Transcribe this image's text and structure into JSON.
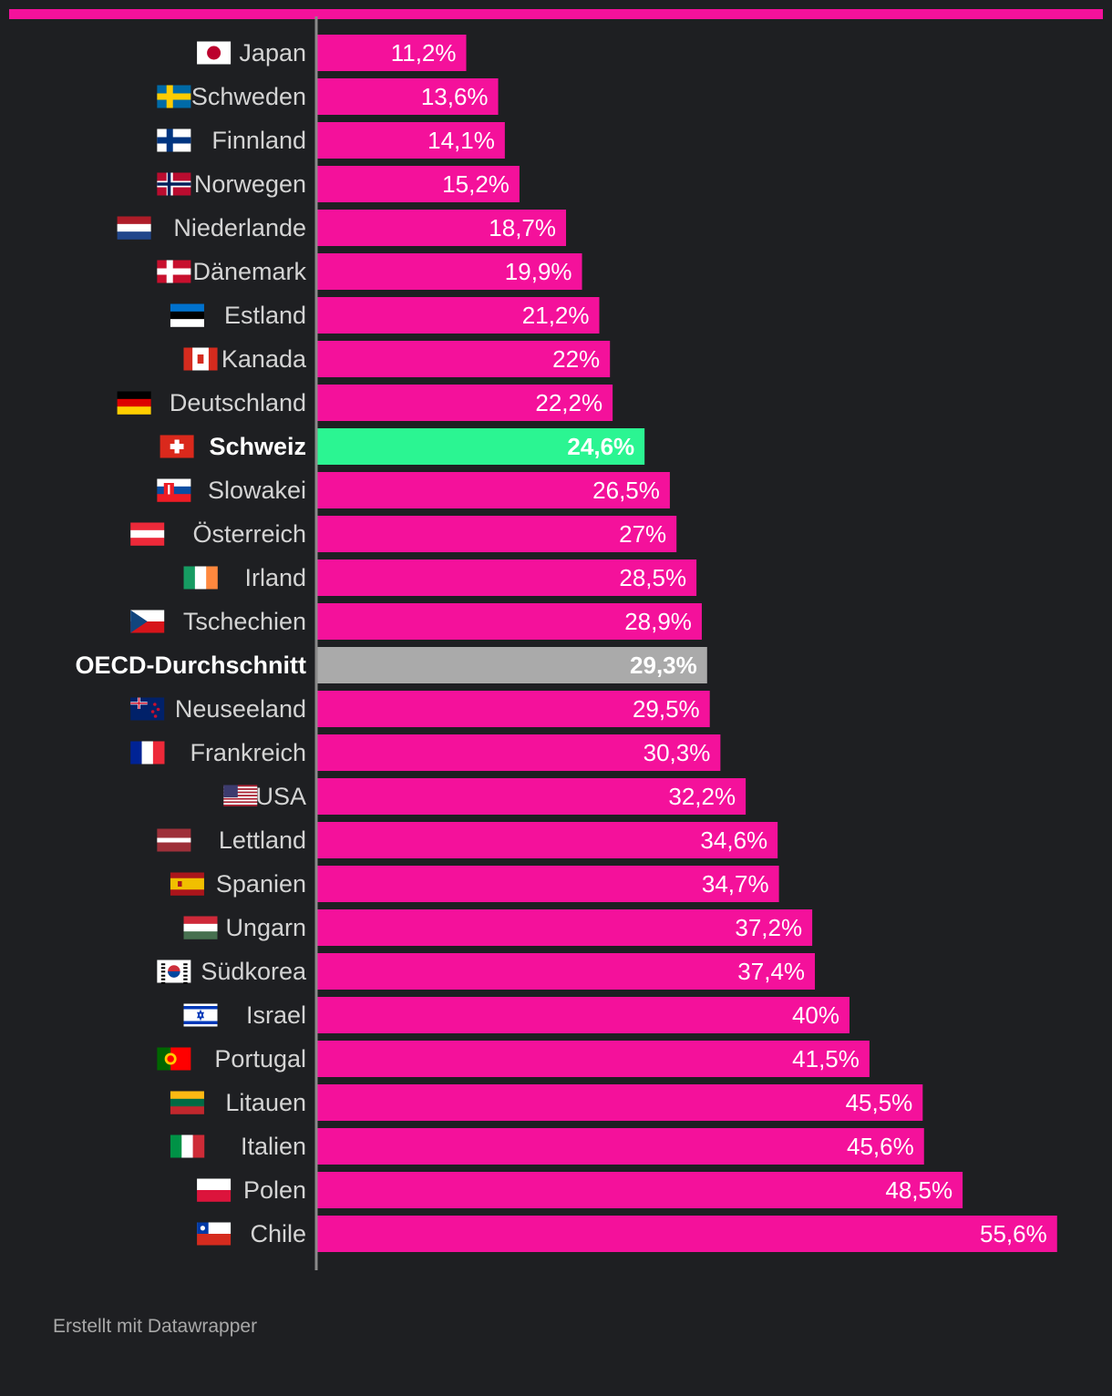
{
  "colors": {
    "background": "#1e1f22",
    "accent": "#f4119b",
    "highlight": "#2bf592",
    "average": "#aaaaaa",
    "axis": "#8a8a8a",
    "label": "#d4d4d4"
  },
  "chart_data": {
    "type": "bar",
    "orientation": "horizontal",
    "title": "",
    "xlabel": "",
    "ylabel": "",
    "xlim": [
      0,
      56
    ],
    "unit": "%",
    "decimal_separator": ",",
    "categories": [
      "Japan",
      "Schweden",
      "Finnland",
      "Norwegen",
      "Niederlande",
      "Dänemark",
      "Estland",
      "Kanada",
      "Deutschland",
      "Schweiz",
      "Slowakei",
      "Österreich",
      "Irland",
      "Tschechien",
      "OECD-Durchschnitt",
      "Neuseeland",
      "Frankreich",
      "USA",
      "Lettland",
      "Spanien",
      "Ungarn",
      "Südkorea",
      "Israel",
      "Portugal",
      "Litauen",
      "Italien",
      "Polen",
      "Chile"
    ],
    "values": [
      11.2,
      13.6,
      14.1,
      15.2,
      18.7,
      19.9,
      21.2,
      22,
      22.2,
      24.6,
      26.5,
      27,
      28.5,
      28.9,
      29.3,
      29.5,
      30.3,
      32.2,
      34.6,
      34.7,
      37.2,
      37.4,
      40,
      41.5,
      45.5,
      45.6,
      48.5,
      55.6
    ],
    "value_labels": [
      "11,2%",
      "13,6%",
      "14,1%",
      "15,2%",
      "18,7%",
      "19,9%",
      "21,2%",
      "22%",
      "22,2%",
      "24,6%",
      "26,5%",
      "27%",
      "28,5%",
      "28,9%",
      "29,3%",
      "29,5%",
      "30,3%",
      "32,2%",
      "34,6%",
      "34,7%",
      "37,2%",
      "37,4%",
      "40%",
      "41,5%",
      "45,5%",
      "45,6%",
      "48,5%",
      "55,6%"
    ],
    "flags": [
      "jp",
      "se",
      "fi",
      "no",
      "nl",
      "dk",
      "ee",
      "ca",
      "de",
      "ch",
      "sk",
      "at",
      "ie",
      "cz",
      "",
      "nz",
      "fr",
      "us",
      "lv",
      "es",
      "hu",
      "kr",
      "il",
      "pt",
      "lt",
      "it",
      "pl",
      "cl"
    ],
    "highlight": [
      "Schweiz"
    ],
    "average": [
      "OECD-Durchschnitt"
    ]
  },
  "footer": {
    "credit": "Erstellt mit Datawrapper"
  }
}
